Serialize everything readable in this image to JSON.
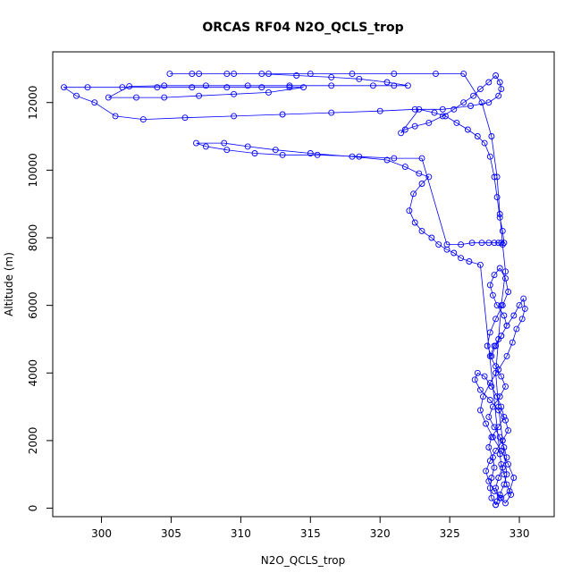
{
  "chart_data": {
    "type": "scatter",
    "title": "ORCAS RF04 N2O_QCLS_trop",
    "xlabel": "N2O_QCLS_trop",
    "ylabel": "Altitude (m)",
    "xlim": [
      296.5,
      332.5
    ],
    "ylim": [
      -250,
      13500
    ],
    "x_ticks": [
      300,
      305,
      310,
      315,
      320,
      325,
      330
    ],
    "y_ticks": [
      0,
      2000,
      4000,
      6000,
      8000,
      10000,
      12000
    ],
    "grid": false,
    "legend": "none",
    "marker": "open-circle",
    "connected": true,
    "series_color": "#0000ff",
    "x": [
      328.3,
      328.0,
      327.9,
      328.0,
      328.2,
      328.1,
      327.8,
      328.0,
      328.5,
      328.9,
      328.7,
      328.4,
      328.0,
      327.5,
      327.0,
      326.8,
      327.2,
      327.9,
      328.5,
      329.0,
      329.2,
      328.8,
      328.3,
      327.9,
      327.6,
      327.8,
      328.2,
      328.7,
      329.3,
      329.6,
      329.2,
      328.7,
      328.1,
      327.6,
      327.2,
      327.4,
      327.9,
      328.5,
      329.1,
      329.5,
      329.8,
      330.2,
      330.4,
      330.3,
      330.0,
      329.6,
      329.1,
      328.7,
      328.3,
      328.0,
      327.7,
      327.9,
      328.3,
      328.8,
      329.2,
      329.0,
      328.6,
      328.2,
      327.9,
      328.1,
      328.4,
      328.9,
      329.1,
      328.7,
      328.2,
      327.9,
      328.3,
      328.7,
      329.0,
      328.6,
      328.1,
      327.8,
      328.2,
      328.6,
      328.9,
      329.1,
      328.8,
      328.5,
      328.3,
      328.6,
      329.0,
      329.4,
      329.1,
      328.9,
      328.7,
      328.6,
      327.2,
      326.4,
      325.8,
      325.3,
      324.8,
      324.2,
      323.7,
      323.0,
      322.5,
      322.1,
      322.4,
      323.0,
      323.5,
      322.8,
      321.8,
      320.5,
      318.0,
      315.0,
      312.5,
      310.5,
      308.8,
      306.8,
      307.5,
      309.0,
      311.0,
      313.0,
      315.5,
      318.5,
      321.0,
      323.0,
      324.8,
      325.8,
      326.6,
      327.3,
      327.8,
      328.2,
      328.5,
      328.7,
      328.9,
      328.8,
      328.6,
      328.4,
      328.2,
      327.9,
      327.5,
      327.0,
      326.3,
      325.5,
      324.7,
      323.9,
      322.8,
      321.5,
      321.8,
      322.5,
      323.5,
      324.5,
      325.3,
      326.0,
      326.7,
      327.2,
      327.8,
      328.3,
      328.6,
      328.7,
      328.5,
      327.8,
      326.5,
      324.5,
      322.5,
      320.0,
      316.5,
      313.0,
      309.5,
      306.0,
      303.0,
      301.0,
      299.5,
      298.2,
      297.3,
      299.0,
      301.5,
      304.0,
      306.5,
      309.0,
      311.5,
      313.5,
      314.5,
      312.0,
      309.5,
      307.0,
      304.5,
      302.5,
      300.5,
      302.0,
      304.5,
      307.5,
      310.5,
      313.5,
      316.5,
      319.5,
      321.0,
      322.0,
      320.5,
      318.5,
      316.5,
      314.0,
      311.5,
      309.0,
      306.5,
      304.9,
      307.0,
      309.5,
      312.0,
      315.0,
      318.0,
      321.0,
      324.0,
      326.0,
      327.3,
      328.0,
      328.4,
      328.6,
      328.8,
      329.0,
      328.7,
      328.5,
      328.3,
      328.5,
      328.8,
      329.1,
      328.9,
      328.6,
      328.4,
      328.3
    ],
    "y": [
      100,
      300,
      600,
      900,
      1200,
      1500,
      1800,
      2100,
      2400,
      2700,
      3000,
      3300,
      3600,
      3900,
      4000,
      3800,
      3500,
      3200,
      2900,
      2600,
      2300,
      2000,
      1700,
      1400,
      1100,
      800,
      500,
      300,
      500,
      900,
      1300,
      1700,
      2100,
      2500,
      2900,
      3300,
      3700,
      4100,
      4500,
      4900,
      5300,
      5600,
      5900,
      6200,
      6000,
      5700,
      5400,
      5100,
      4800,
      4500,
      4800,
      5200,
      5600,
      6000,
      6400,
      6800,
      7100,
      6900,
      6600,
      6300,
      6000,
      5700,
      5400,
      5100,
      4800,
      4500,
      4200,
      3900,
      3600,
      3300,
      3000,
      2700,
      2400,
      2100,
      1800,
      1500,
      1200,
      900,
      600,
      300,
      150,
      400,
      700,
      1000,
      1300,
      1600,
      7200,
      7300,
      7400,
      7550,
      7650,
      7800,
      8000,
      8200,
      8450,
      8800,
      9300,
      9600,
      9800,
      9900,
      10100,
      10300,
      10400,
      10500,
      10600,
      10700,
      10800,
      10800,
      10700,
      10600,
      10500,
      10450,
      10450,
      10400,
      10350,
      10350,
      7800,
      7800,
      7850,
      7850,
      7850,
      7850,
      7850,
      7850,
      7850,
      8200,
      8600,
      9200,
      9800,
      10400,
      10800,
      11000,
      11200,
      11400,
      11600,
      11700,
      11800,
      11100,
      11200,
      11300,
      11400,
      11600,
      11800,
      12000,
      12200,
      12400,
      12600,
      12800,
      12600,
      12400,
      12200,
      12000,
      11900,
      11800,
      11800,
      11750,
      11700,
      11650,
      11600,
      11550,
      11500,
      11600,
      12000,
      12200,
      12450,
      12450,
      12450,
      12450,
      12450,
      12450,
      12450,
      12450,
      12450,
      12300,
      12250,
      12200,
      12150,
      12150,
      12150,
      12480,
      12500,
      12500,
      12500,
      12500,
      12500,
      12500,
      12500,
      12500,
      12600,
      12700,
      12750,
      12800,
      12850,
      12850,
      12850,
      12850,
      12850,
      12850,
      12850,
      12850,
      12850,
      12850,
      12850,
      12850,
      12000,
      11000,
      9800,
      8700,
      7800,
      7000,
      6000,
      5000,
      4000,
      3000,
      2000,
      1000,
      700,
      400,
      200,
      100
    ]
  }
}
